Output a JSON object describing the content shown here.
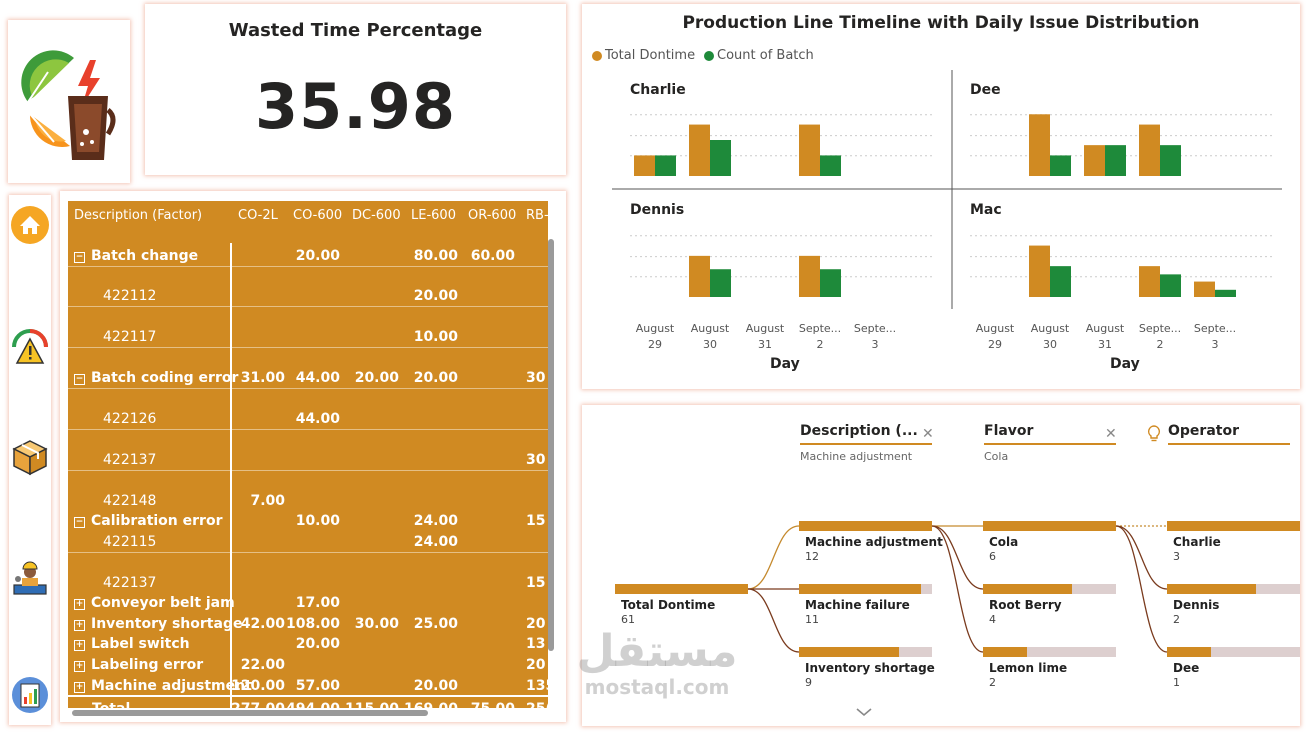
{
  "kpi": {
    "title": "Wasted Time Percentage",
    "value": "35.98"
  },
  "nav": {
    "items": [
      "home-icon",
      "alert-gauge-icon",
      "box-icon",
      "operator-icon",
      "report-icon"
    ]
  },
  "matrix": {
    "headers": [
      "Description (Factor)",
      "CO-2L",
      "CO-600",
      "DC-600",
      "LE-600",
      "OR-600",
      "RB-"
    ],
    "rows": [
      {
        "label": "Batch change",
        "type": "group",
        "values": [
          "",
          "20.00",
          "",
          "80.00",
          "60.00",
          ""
        ]
      },
      {
        "label": "422112",
        "type": "sub",
        "values": [
          "",
          "",
          "",
          "20.00",
          "",
          ""
        ]
      },
      {
        "label": "422117",
        "type": "sub",
        "values": [
          "",
          "",
          "",
          "10.00",
          "",
          ""
        ]
      },
      {
        "label": "Batch coding error",
        "type": "group",
        "values": [
          "31.00",
          "44.00",
          "20.00",
          "20.00",
          "",
          "30"
        ]
      },
      {
        "label": "422126",
        "type": "sub",
        "values": [
          "",
          "44.00",
          "",
          "",
          "",
          ""
        ]
      },
      {
        "label": "422137",
        "type": "sub",
        "values": [
          "",
          "",
          "",
          "",
          "",
          "30"
        ]
      },
      {
        "label": "422148",
        "type": "sub",
        "values": [
          "7.00",
          "",
          "",
          "",
          "",
          ""
        ]
      },
      {
        "label": "Calibration error",
        "type": "group",
        "values": [
          "",
          "10.00",
          "",
          "24.00",
          "",
          "15"
        ]
      },
      {
        "label": "422115",
        "type": "sub",
        "values": [
          "",
          "",
          "",
          "24.00",
          "",
          ""
        ]
      },
      {
        "label": "422137",
        "type": "sub",
        "values": [
          "",
          "",
          "",
          "",
          "",
          "15"
        ]
      },
      {
        "label": "Conveyor belt jam",
        "type": "collapsed",
        "values": [
          "",
          "17.00",
          "",
          "",
          "",
          ""
        ]
      },
      {
        "label": "Inventory shortage",
        "type": "collapsed",
        "values": [
          "42.00",
          "108.00",
          "30.00",
          "25.00",
          "",
          "20"
        ]
      },
      {
        "label": "Label switch",
        "type": "collapsed",
        "values": [
          "",
          "20.00",
          "",
          "",
          "",
          "13"
        ]
      },
      {
        "label": "Labeling error",
        "type": "collapsed",
        "values": [
          "22.00",
          "",
          "",
          "",
          "",
          "20"
        ]
      },
      {
        "label": "Machine adjustment",
        "type": "collapsed",
        "values": [
          "120.00",
          "57.00",
          "",
          "20.00",
          "",
          "135"
        ]
      },
      {
        "label": "Total",
        "type": "total",
        "values": [
          "277.00",
          "494.00",
          "115.00",
          "169.00",
          "75.00",
          "25("
        ]
      }
    ]
  },
  "chart": {
    "title": "Production Line Timeline with Daily Issue Distribution",
    "legend": [
      {
        "name": "Total Dontime",
        "color": "#D08A22"
      },
      {
        "name": "Count of Batch",
        "color": "#1E8A3A"
      }
    ],
    "ticks": [
      [
        "August",
        "29"
      ],
      [
        "August",
        "30"
      ],
      [
        "August",
        "31"
      ],
      [
        "Septe...",
        "2"
      ],
      [
        "Septe...",
        "3"
      ]
    ],
    "xlabel": "Day",
    "panels": [
      {
        "name": "Charlie",
        "total": [
          2,
          5,
          0,
          5,
          0
        ],
        "count": [
          2,
          3.5,
          0,
          2,
          0
        ]
      },
      {
        "name": "Dee",
        "total": [
          0,
          6,
          3,
          5,
          0
        ],
        "count": [
          0,
          2,
          3,
          3,
          0
        ]
      },
      {
        "name": "Dennis",
        "total": [
          0,
          4,
          0,
          4,
          0
        ],
        "count": [
          0,
          2.7,
          0,
          2.7,
          0
        ]
      },
      {
        "name": "Mac",
        "total": [
          0,
          5,
          0,
          3,
          1.5
        ],
        "count": [
          0,
          3,
          0,
          2.2,
          0.7
        ]
      }
    ],
    "ymax": 7
  },
  "decomp": {
    "levels": [
      {
        "title": "Description (...",
        "filter": "Machine adjustment"
      },
      {
        "title": "Flavor",
        "filter": "Cola"
      },
      {
        "title": "Operator",
        "filter": ""
      }
    ],
    "root": {
      "label": "Total Dontime",
      "count": "61"
    },
    "col1": [
      {
        "label": "Machine adjustment",
        "count": "12",
        "frac": 1.0
      },
      {
        "label": "Machine failure",
        "count": "11",
        "frac": 0.92
      },
      {
        "label": "Inventory shortage",
        "count": "9",
        "frac": 0.75
      }
    ],
    "col2": [
      {
        "label": "Cola",
        "count": "6",
        "frac": 1.0
      },
      {
        "label": "Root Berry",
        "count": "4",
        "frac": 0.67
      },
      {
        "label": "Lemon lime",
        "count": "2",
        "frac": 0.33
      }
    ],
    "col3": [
      {
        "label": "Charlie",
        "count": "3",
        "frac": 1.0
      },
      {
        "label": "Dennis",
        "count": "2",
        "frac": 0.67
      },
      {
        "label": "Dee",
        "count": "1",
        "frac": 0.33
      }
    ]
  },
  "watermark": {
    "arabic": "مستقل",
    "latin": "mostaql.com"
  }
}
